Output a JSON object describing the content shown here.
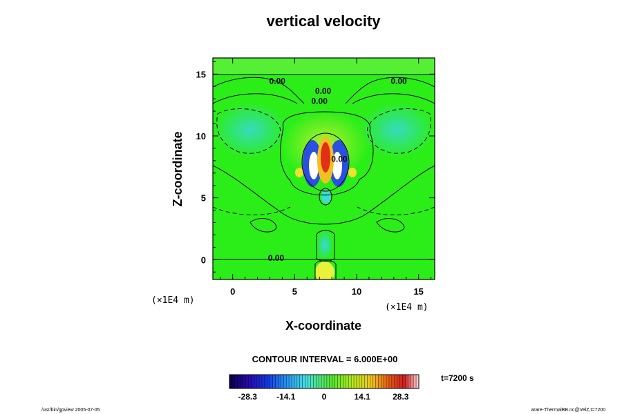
{
  "chart_data": {
    "type": "heatmap",
    "title": "vertical velocity",
    "xlabel": "X-coordinate",
    "ylabel": "Z-coordinate",
    "xlim": [
      -1.6,
      16.3
    ],
    "ylim": [
      -1.6,
      16.3
    ],
    "x_ticks": [
      0,
      5,
      10,
      15
    ],
    "y_ticks": [
      0,
      5,
      10,
      15
    ],
    "x_unit": "(×1E4 m)",
    "y_unit": "(×1E4 m)",
    "contour_interval_label": "CONTOUR INTERVAL = 6.000E+00",
    "contour_labels": [
      {
        "text": "0.00",
        "x": 3.6,
        "y": 14.2
      },
      {
        "text": "0.00",
        "x": 7.3,
        "y": 13.4
      },
      {
        "text": "0.00",
        "x": 7.0,
        "y": 12.6
      },
      {
        "text": "0.00",
        "x": 13.4,
        "y": 14.2
      },
      {
        "text": "0.00",
        "x": 8.6,
        "y": 7.9
      },
      {
        "text": "0.00",
        "x": 3.5,
        "y": -0.1
      }
    ],
    "colorbar": {
      "min": -35,
      "max": 35,
      "tick_labels": [
        "-28.3",
        "-14.1",
        "0",
        "14.1",
        "28.3"
      ],
      "tick_values": [
        -28.3,
        -14.1,
        0,
        14.1,
        28.3
      ]
    },
    "grid": false,
    "legend": "none"
  },
  "time_label": "t=7200 s",
  "footer_left": "/usr/bin/gpview 2005-07-05",
  "footer_right": "arare-ThermalBB.nc@VelZ,t=7200"
}
